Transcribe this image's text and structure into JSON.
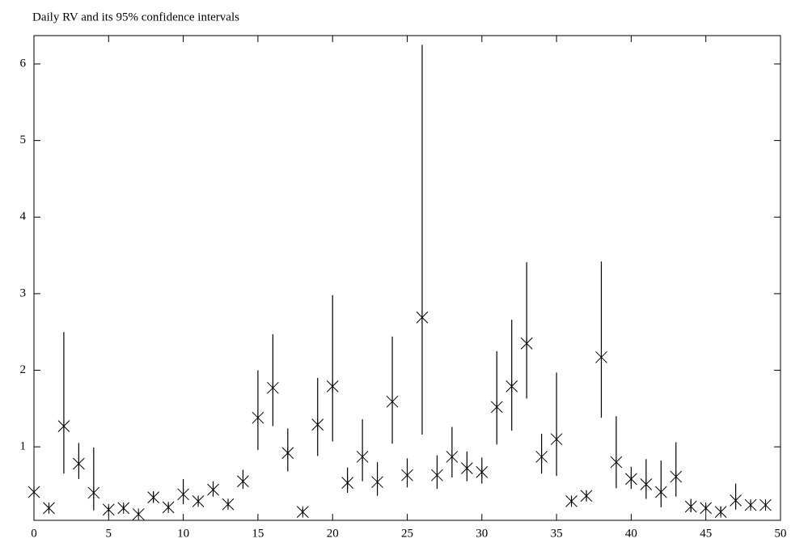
{
  "chart_data": {
    "type": "interval-scatter",
    "title": "Daily RV and its 95% confidence intervals",
    "x": [
      0,
      1,
      2,
      3,
      4,
      5,
      6,
      7,
      8,
      9,
      10,
      11,
      12,
      13,
      14,
      15,
      16,
      17,
      18,
      19,
      20,
      21,
      22,
      23,
      24,
      25,
      26,
      27,
      28,
      29,
      30,
      31,
      32,
      33,
      34,
      35,
      36,
      37,
      38,
      39,
      40,
      41,
      42,
      43,
      44,
      45,
      46,
      47,
      48,
      49
    ],
    "values": [
      0.41,
      0.2,
      1.27,
      0.78,
      0.4,
      0.18,
      0.2,
      0.12,
      0.34,
      0.21,
      0.38,
      0.29,
      0.44,
      0.25,
      0.55,
      1.38,
      1.77,
      0.92,
      0.15,
      1.29,
      1.79,
      0.53,
      0.87,
      0.54,
      1.59,
      0.63,
      2.69,
      0.63,
      0.87,
      0.72,
      0.67,
      1.52,
      1.79,
      2.35,
      0.87,
      1.1,
      0.29,
      0.36,
      2.17,
      0.8,
      0.58,
      0.51,
      0.41,
      0.61,
      0.22,
      0.2,
      0.15,
      0.3,
      0.24,
      0.24
    ],
    "lower": [
      0.35,
      0.17,
      0.65,
      0.58,
      0.17,
      0.15,
      0.17,
      0.1,
      0.28,
      0.18,
      0.25,
      0.24,
      0.35,
      0.2,
      0.45,
      0.96,
      1.27,
      0.68,
      0.12,
      0.88,
      1.07,
      0.4,
      0.55,
      0.36,
      1.04,
      0.47,
      1.16,
      0.45,
      0.6,
      0.55,
      0.52,
      1.03,
      1.21,
      1.63,
      0.65,
      0.62,
      0.24,
      0.3,
      1.38,
      0.46,
      0.45,
      0.32,
      0.21,
      0.35,
      0.15,
      0.17,
      0.1,
      0.18,
      0.2,
      0.2
    ],
    "upper": [
      0.48,
      0.24,
      2.5,
      1.05,
      0.99,
      0.22,
      0.24,
      0.15,
      0.42,
      0.26,
      0.58,
      0.35,
      0.55,
      0.31,
      0.7,
      2.0,
      2.47,
      1.24,
      0.19,
      1.9,
      2.98,
      0.73,
      1.36,
      0.8,
      2.44,
      0.85,
      6.25,
      0.89,
      1.26,
      0.94,
      0.86,
      2.25,
      2.66,
      3.41,
      1.17,
      1.97,
      0.35,
      0.43,
      3.42,
      1.4,
      0.74,
      0.84,
      0.82,
      1.06,
      0.32,
      0.24,
      0.22,
      0.52,
      0.29,
      0.29
    ],
    "color": "#000000",
    "xlim": [
      0,
      50
    ],
    "xticks": [
      0,
      5,
      10,
      15,
      20,
      25,
      30,
      35,
      40,
      45,
      50
    ],
    "ylim": [
      0.04,
      6.37
    ],
    "yticks": [
      1,
      2,
      3,
      4,
      5,
      6
    ]
  }
}
